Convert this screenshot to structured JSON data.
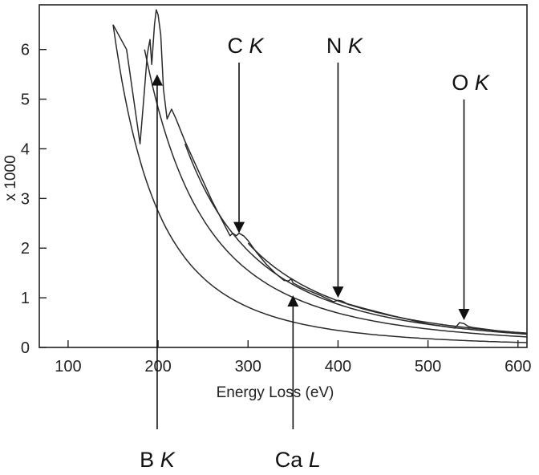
{
  "chart_data": {
    "type": "line",
    "xlabel": "Energy Loss (eV)",
    "ylabel": "x 1000",
    "xlim": [
      68,
      610
    ],
    "ylim": [
      0,
      6.9
    ],
    "x_ticks": [
      100,
      200,
      300,
      400,
      500,
      600
    ],
    "y_ticks": [
      0,
      1,
      2,
      3,
      4,
      5,
      6
    ],
    "grid": false,
    "series": [
      {
        "name": "",
        "x": [
          150,
          165,
          180,
          185,
          188,
          191,
          193,
          196,
          198,
          200,
          203,
          206,
          210,
          215,
          220,
          230,
          240,
          250,
          260,
          270,
          280,
          283,
          287,
          290,
          295,
          300,
          310,
          320,
          330,
          340,
          345,
          348,
          350,
          355,
          360,
          380,
          395,
          400,
          405,
          410,
          430,
          460,
          500,
          530,
          535,
          540,
          545,
          550,
          580,
          610
        ],
        "values": [
          6.5,
          6.0,
          4.1,
          5.2,
          5.9,
          6.2,
          5.7,
          6.5,
          6.8,
          6.7,
          6.3,
          5.2,
          4.6,
          4.8,
          4.6,
          4.15,
          3.75,
          3.35,
          2.95,
          2.6,
          2.25,
          2.3,
          2.25,
          2.3,
          2.25,
          2.15,
          1.9,
          1.68,
          1.5,
          1.35,
          1.34,
          1.38,
          1.3,
          1.25,
          1.2,
          1.05,
          0.92,
          0.95,
          0.93,
          0.88,
          0.78,
          0.64,
          0.47,
          0.39,
          0.5,
          0.48,
          0.42,
          0.4,
          0.33,
          0.28
        ]
      },
      {
        "name": "",
        "x": [
          150,
          610
        ],
        "values": [
          6.5,
          0.22
        ],
        "k": 3.0
      },
      {
        "name": "",
        "x": [
          185,
          610
        ],
        "values": [
          6.0,
          0.26
        ],
        "k": 2.8
      },
      {
        "name": "",
        "x": [
          230,
          610
        ],
        "values": [
          4.1,
          0.3
        ],
        "k": 2.8
      },
      {
        "name": "",
        "x": [
          300,
          610
        ],
        "values": [
          2.1,
          0.33
        ],
        "k": 2.8
      }
    ],
    "annotations": [
      {
        "label": "C",
        "label_italic": "K",
        "x": 290,
        "y": 2.3
      },
      {
        "label": "N",
        "label_italic": "K",
        "x": 400,
        "y": 1.0
      },
      {
        "label": "O",
        "label_italic": "K",
        "x": 540,
        "y": 0.55
      },
      {
        "label": "B",
        "label_italic": "K",
        "x": 199,
        "y": 5.5
      },
      {
        "label": "Ca",
        "label_italic": "L",
        "x": 350,
        "y": 1.05
      }
    ]
  }
}
